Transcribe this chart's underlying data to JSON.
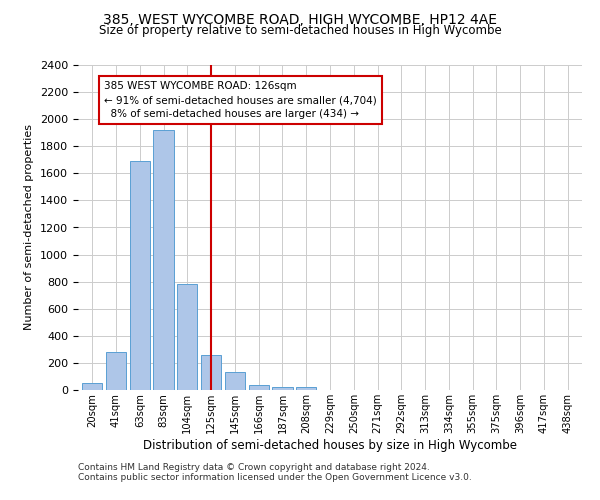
{
  "title": "385, WEST WYCOMBE ROAD, HIGH WYCOMBE, HP12 4AE",
  "subtitle": "Size of property relative to semi-detached houses in High Wycombe",
  "xlabel": "Distribution of semi-detached houses by size in High Wycombe",
  "ylabel": "Number of semi-detached properties",
  "footnote1": "Contains HM Land Registry data © Crown copyright and database right 2024.",
  "footnote2": "Contains public sector information licensed under the Open Government Licence v3.0.",
  "bar_labels": [
    "20sqm",
    "41sqm",
    "63sqm",
    "83sqm",
    "104sqm",
    "125sqm",
    "145sqm",
    "166sqm",
    "187sqm",
    "208sqm",
    "229sqm",
    "250sqm",
    "271sqm",
    "292sqm",
    "313sqm",
    "334sqm",
    "355sqm",
    "375sqm",
    "396sqm",
    "417sqm",
    "438sqm"
  ],
  "bar_values": [
    55,
    280,
    1690,
    1920,
    785,
    255,
    130,
    35,
    25,
    20,
    0,
    0,
    0,
    0,
    0,
    0,
    0,
    0,
    0,
    0,
    0
  ],
  "bar_color": "#aec6e8",
  "bar_edge_color": "#5a9fd4",
  "highlight_index": 5,
  "highlight_color": "#cc0000",
  "property_size": "126sqm",
  "property_address": "385 WEST WYCOMBE ROAD",
  "pct_smaller": 91,
  "count_smaller": 4704,
  "pct_larger": 8,
  "count_larger": 434,
  "ylim": [
    0,
    2400
  ],
  "yticks": [
    0,
    200,
    400,
    600,
    800,
    1000,
    1200,
    1400,
    1600,
    1800,
    2000,
    2200,
    2400
  ],
  "annotation_box_color": "#cc0000",
  "background_color": "#ffffff",
  "grid_color": "#cccccc"
}
